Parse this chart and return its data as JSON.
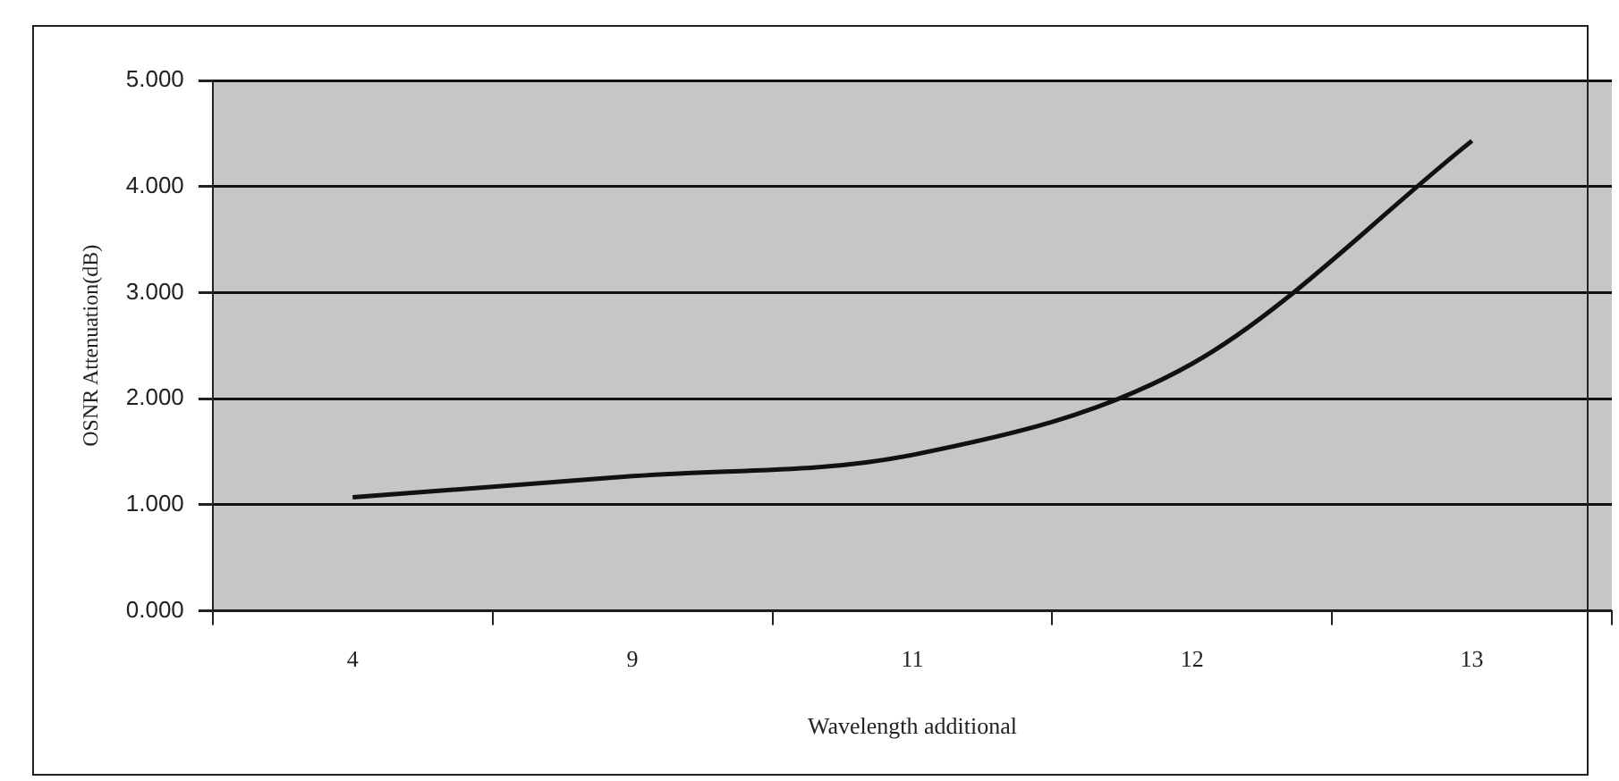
{
  "chart_data": {
    "type": "line",
    "xlabel": "Wavelength additional",
    "ylabel": "OSNR Attenuation(dB)",
    "categories": [
      "4",
      "9",
      "11",
      "12",
      "13"
    ],
    "values": [
      1.07,
      1.27,
      1.47,
      2.33,
      4.43
    ],
    "color": "#111111",
    "ylim": [
      0,
      5
    ],
    "yticks": [
      {
        "value": 0,
        "label": "0.000"
      },
      {
        "value": 1,
        "label": "1.000"
      },
      {
        "value": 2,
        "label": "2.000"
      },
      {
        "value": 3,
        "label": "3.000"
      },
      {
        "value": 4,
        "label": "4.000"
      },
      {
        "value": 5,
        "label": "5.000"
      }
    ],
    "grid": "y",
    "legend": false,
    "marker": "none",
    "line_style": "solid"
  }
}
